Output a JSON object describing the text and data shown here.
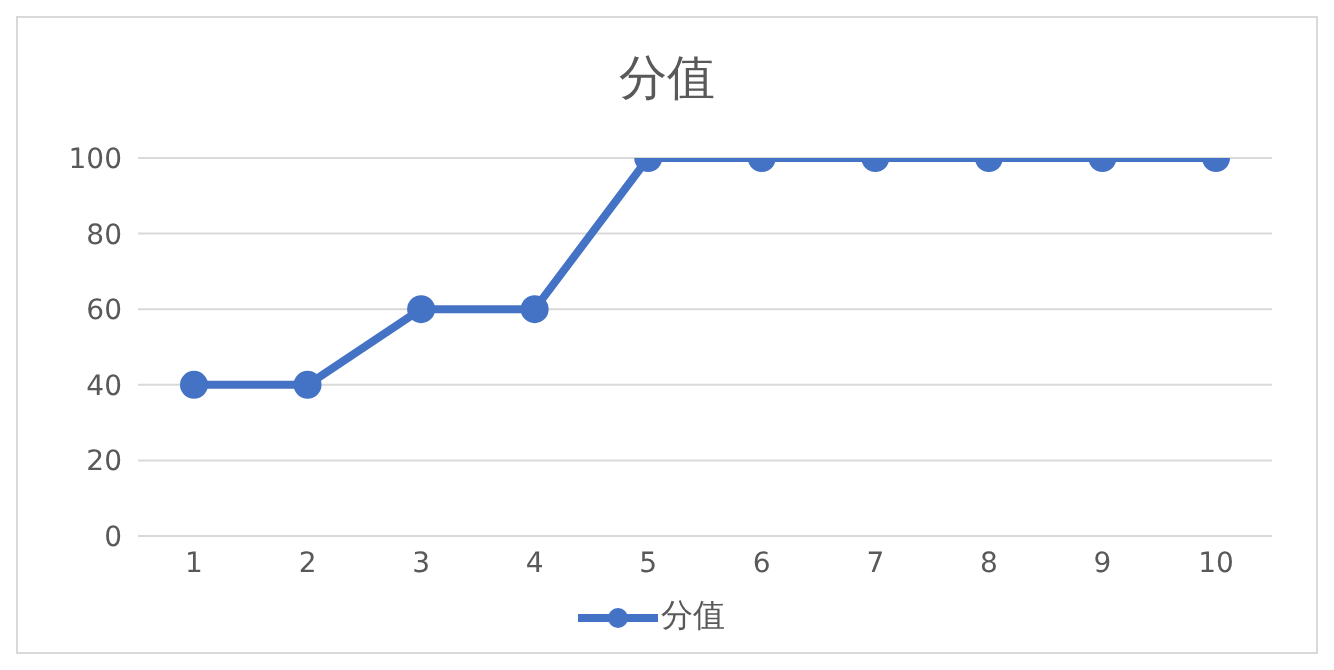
{
  "chart_data": {
    "type": "line",
    "title": "分值",
    "categories": [
      "1",
      "2",
      "3",
      "4",
      "5",
      "6",
      "7",
      "8",
      "9",
      "10"
    ],
    "series": [
      {
        "name": "分值",
        "color": "#4472c4",
        "values": [
          40,
          40,
          60,
          60,
          100,
          100,
          100,
          100,
          100,
          100
        ]
      }
    ],
    "ylim": [
      0,
      100
    ],
    "yticks": [
      0,
      20,
      40,
      60,
      80,
      100
    ],
    "grid": "y",
    "legend": "bottom",
    "marker": "circle",
    "line_style": "solid"
  }
}
